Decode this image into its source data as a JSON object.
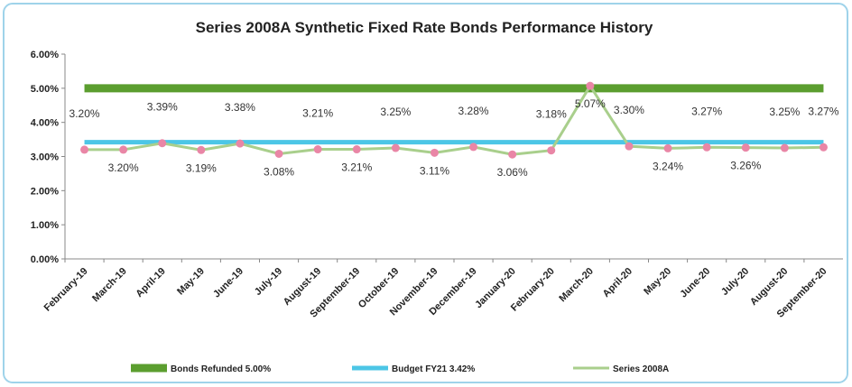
{
  "chart_data": {
    "type": "line",
    "title": "Series 2008A Synthetic Fixed Rate Bonds Performance History",
    "categories": [
      "February-19",
      "March-19",
      "April-19",
      "May-19",
      "June-19",
      "July-19",
      "August-19",
      "September-19",
      "October-19",
      "November-19",
      "December-19",
      "January-20",
      "February-20",
      "March-20",
      "April-20",
      "May-20",
      "June-20",
      "July-20",
      "August-20",
      "September-20"
    ],
    "series": [
      {
        "name": "Bonds Refunded 5.00%",
        "color": "#5b9e2f",
        "values": [
          5,
          5,
          5,
          5,
          5,
          5,
          5,
          5,
          5,
          5,
          5,
          5,
          5,
          5,
          5,
          5,
          5,
          5,
          5,
          5
        ]
      },
      {
        "name": "Budget FY21 3.42%",
        "color": "#4cc6e6",
        "values": [
          3.42,
          3.42,
          3.42,
          3.42,
          3.42,
          3.42,
          3.42,
          3.42,
          3.42,
          3.42,
          3.42,
          3.42,
          3.42,
          3.42,
          3.42,
          3.42,
          3.42,
          3.42,
          3.42,
          3.42
        ]
      },
      {
        "name": "Series 2008A",
        "color": "#a9cf8c",
        "marker_color": "#e986a6",
        "values": [
          3.2,
          3.2,
          3.39,
          3.19,
          3.38,
          3.08,
          3.21,
          3.21,
          3.25,
          3.11,
          3.28,
          3.06,
          3.18,
          5.07,
          3.3,
          3.24,
          3.27,
          3.26,
          3.25,
          3.27
        ],
        "value_labels": [
          "3.20%",
          "3.20%",
          "3.39%",
          "3.19%",
          "3.38%",
          "3.08%",
          "3.21%",
          "3.21%",
          "3.25%",
          "3.11%",
          "3.28%",
          "3.06%",
          "3.18%",
          "5.07%",
          "3.30%",
          "3.24%",
          "3.27%",
          "3.26%",
          "3.25%",
          "3.27%"
        ]
      }
    ],
    "ylim": [
      0,
      6
    ],
    "yticks": [
      {
        "value": 0,
        "label": "0.00%"
      },
      {
        "value": 1,
        "label": "1.00%"
      },
      {
        "value": 2,
        "label": "2.00%"
      },
      {
        "value": 3,
        "label": "3.00%"
      },
      {
        "value": 4,
        "label": "4.00%"
      },
      {
        "value": 5,
        "label": "5.00%"
      },
      {
        "value": 6,
        "label": "6.00%"
      }
    ],
    "legend": "bottom"
  }
}
